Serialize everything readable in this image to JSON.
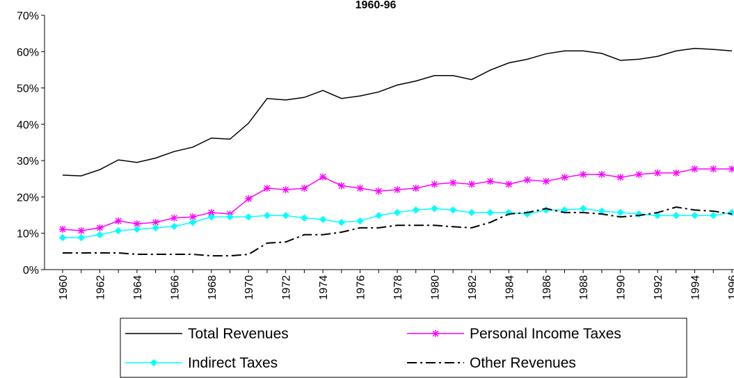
{
  "chart_data": {
    "type": "line",
    "title": "1960-96",
    "categories": [
      "1960",
      null,
      "1962",
      null,
      "1964",
      null,
      "1966",
      null,
      "1968",
      null,
      "1970",
      null,
      "1972",
      null,
      "1974",
      null,
      "1976",
      null,
      "1978",
      null,
      "1980",
      null,
      "1982",
      null,
      "1984",
      null,
      "1986",
      null,
      "1988",
      null,
      "1990",
      null,
      "1992",
      null,
      "1994",
      null,
      "1996"
    ],
    "series": [
      {
        "name": "Total Revenues",
        "color": "#000000",
        "marker": "none",
        "dash": "solid",
        "values": [
          26,
          25.8,
          27.5,
          30.2,
          29.5,
          30.7,
          32.5,
          33.7,
          36.2,
          35.9,
          40.3,
          47.1,
          46.7,
          47.4,
          49.3,
          47.1,
          47.8,
          48.9,
          50.8,
          51.9,
          53.4,
          53.4,
          52.3,
          54.9,
          56.9,
          57.9,
          59.4,
          60.2,
          60.2,
          59.5,
          57.6,
          57.9,
          58.7,
          60.2,
          60.9,
          60.6,
          60.2
        ]
      },
      {
        "name": "Personal Income Taxes",
        "color": "#ff00ff",
        "marker": "star",
        "dash": "solid",
        "values": [
          11.1,
          10.7,
          11.5,
          13.4,
          12.6,
          13.0,
          14.2,
          14.5,
          15.7,
          15.3,
          19.5,
          22.4,
          22.0,
          22.4,
          25.5,
          23.1,
          22.4,
          21.6,
          22.0,
          22.4,
          23.5,
          23.9,
          23.5,
          24.3,
          23.5,
          24.7,
          24.3,
          25.4,
          26.2,
          26.2,
          25.4,
          26.2,
          26.6,
          26.6,
          27.7,
          27.7,
          27.7
        ]
      },
      {
        "name": "Indirect Taxes",
        "color": "#00ffff",
        "marker": "diamond",
        "dash": "solid",
        "values": [
          8.8,
          8.8,
          9.6,
          10.7,
          11.1,
          11.5,
          11.9,
          13.0,
          14.5,
          14.5,
          14.5,
          14.9,
          14.9,
          14.2,
          13.8,
          13.0,
          13.4,
          14.9,
          15.7,
          16.4,
          16.8,
          16.4,
          15.7,
          15.7,
          15.7,
          15.3,
          16.4,
          16.4,
          16.8,
          16.1,
          15.7,
          15.3,
          14.9,
          14.9,
          14.9,
          14.9,
          15.7
        ]
      },
      {
        "name": "Other Revenues",
        "color": "#000000",
        "marker": "none",
        "dash": "dashdot",
        "values": [
          4.6,
          4.6,
          4.6,
          4.6,
          4.2,
          4.2,
          4.2,
          4.2,
          3.8,
          3.8,
          4.2,
          7.3,
          7.6,
          9.6,
          9.6,
          10.3,
          11.5,
          11.5,
          12.2,
          12.2,
          12.2,
          11.8,
          11.5,
          13.0,
          15.3,
          15.7,
          16.8,
          15.7,
          15.7,
          15.3,
          14.5,
          14.9,
          15.7,
          17.2,
          16.4,
          16.1,
          15.3
        ]
      }
    ],
    "ylim": [
      0,
      70
    ],
    "yticks": [
      {
        "value": 0,
        "label": "0%"
      },
      {
        "value": 10,
        "label": "10%"
      },
      {
        "value": 20,
        "label": "20%"
      },
      {
        "value": 30,
        "label": "30%"
      },
      {
        "value": 40,
        "label": "40%"
      },
      {
        "value": 50,
        "label": "50%"
      },
      {
        "value": 60,
        "label": "60%"
      },
      {
        "value": 70,
        "label": "70%"
      }
    ],
    "grid": false,
    "legend": "bottom"
  }
}
